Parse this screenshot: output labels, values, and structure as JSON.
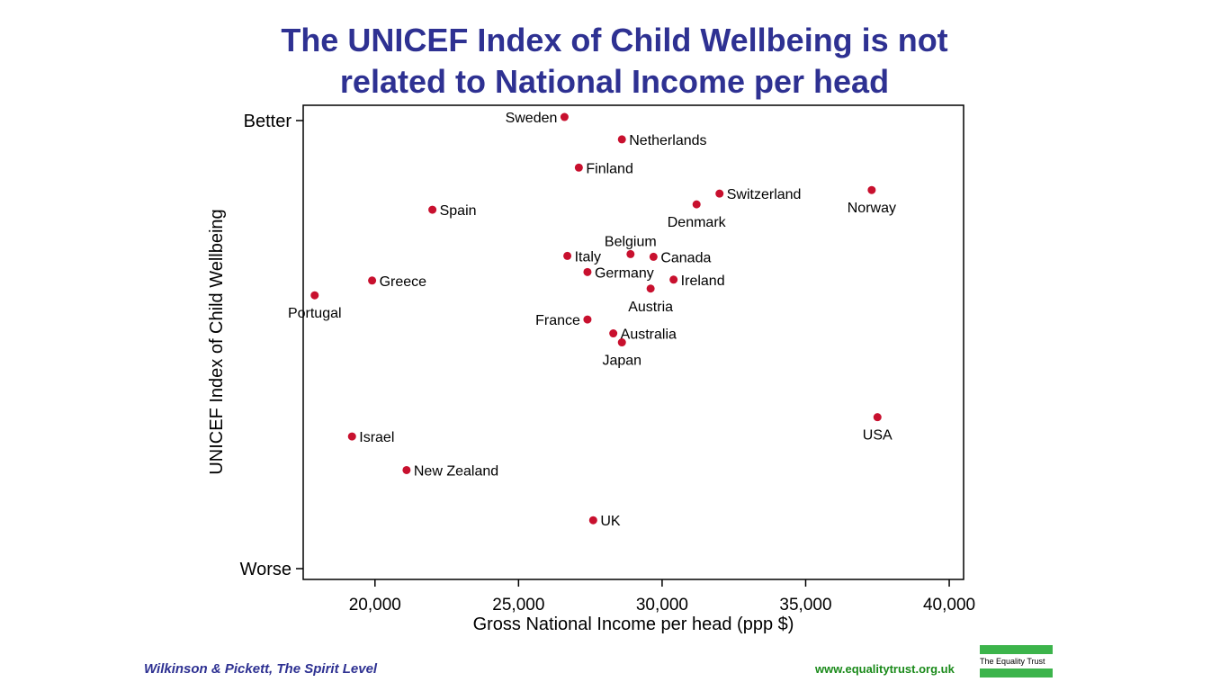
{
  "title": {
    "line1": "The UNICEF Index of Child Wellbeing is not",
    "line2": "related to National Income per head"
  },
  "chart_data": {
    "type": "scatter",
    "xlabel": "Gross National Income per head (ppp $)",
    "ylabel": "UNICEF Index of Child Wellbeing",
    "xlim": [
      17500,
      40500
    ],
    "xticks": [
      20000,
      25000,
      30000,
      35000,
      40000
    ],
    "xtick_labels": [
      "20,000",
      "25,000",
      "30,000",
      "35,000",
      "40,000"
    ],
    "ylim": [
      0,
      100
    ],
    "yticks": [
      {
        "value": 100,
        "label": "Better"
      },
      {
        "value": 0,
        "label": "Worse"
      }
    ],
    "grid": false,
    "point_color": "#c8102e",
    "points": [
      {
        "label": "Sweden",
        "x": 26600,
        "y": 100.8,
        "label_pos": "left"
      },
      {
        "label": "Netherlands",
        "x": 28600,
        "y": 95.8,
        "label_pos": "right"
      },
      {
        "label": "Finland",
        "x": 27100,
        "y": 89.5,
        "label_pos": "right"
      },
      {
        "label": "Switzerland",
        "x": 32000,
        "y": 83.7,
        "label_pos": "right"
      },
      {
        "label": "Norway",
        "x": 37300,
        "y": 84.5,
        "label_pos": "below"
      },
      {
        "label": "Denmark",
        "x": 31200,
        "y": 81.3,
        "label_pos": "below"
      },
      {
        "label": "Spain",
        "x": 22000,
        "y": 80.1,
        "label_pos": "right"
      },
      {
        "label": "Belgium",
        "x": 28900,
        "y": 70.2,
        "label_pos": "above"
      },
      {
        "label": "Italy",
        "x": 26700,
        "y": 69.8,
        "label_pos": "right"
      },
      {
        "label": "Canada",
        "x": 29700,
        "y": 69.6,
        "label_pos": "right"
      },
      {
        "label": "Germany",
        "x": 27400,
        "y": 66.2,
        "label_pos": "right"
      },
      {
        "label": "Ireland",
        "x": 30400,
        "y": 64.5,
        "label_pos": "right"
      },
      {
        "label": "Greece",
        "x": 19900,
        "y": 64.3,
        "label_pos": "right"
      },
      {
        "label": "Austria",
        "x": 29600,
        "y": 62.5,
        "label_pos": "below"
      },
      {
        "label": "Portugal",
        "x": 17900,
        "y": 61.0,
        "label_pos": "below"
      },
      {
        "label": "France",
        "x": 27400,
        "y": 55.6,
        "label_pos": "left"
      },
      {
        "label": "Australia",
        "x": 28300,
        "y": 52.5,
        "label_pos": "right"
      },
      {
        "label": "Japan",
        "x": 28600,
        "y": 50.5,
        "label_pos": "below"
      },
      {
        "label": "USA",
        "x": 37500,
        "y": 33.8,
        "label_pos": "below"
      },
      {
        "label": "Israel",
        "x": 19200,
        "y": 29.5,
        "label_pos": "right"
      },
      {
        "label": "New Zealand",
        "x": 21100,
        "y": 22.0,
        "label_pos": "right"
      },
      {
        "label": "UK",
        "x": 27600,
        "y": 10.8,
        "label_pos": "right"
      }
    ]
  },
  "footer": {
    "citation": "Wilkinson & Pickett, The Spirit Level",
    "url": "www.equalitytrust.org.uk",
    "logo_text": "The Equality Trust",
    "logo_color": "#3cb44b"
  }
}
